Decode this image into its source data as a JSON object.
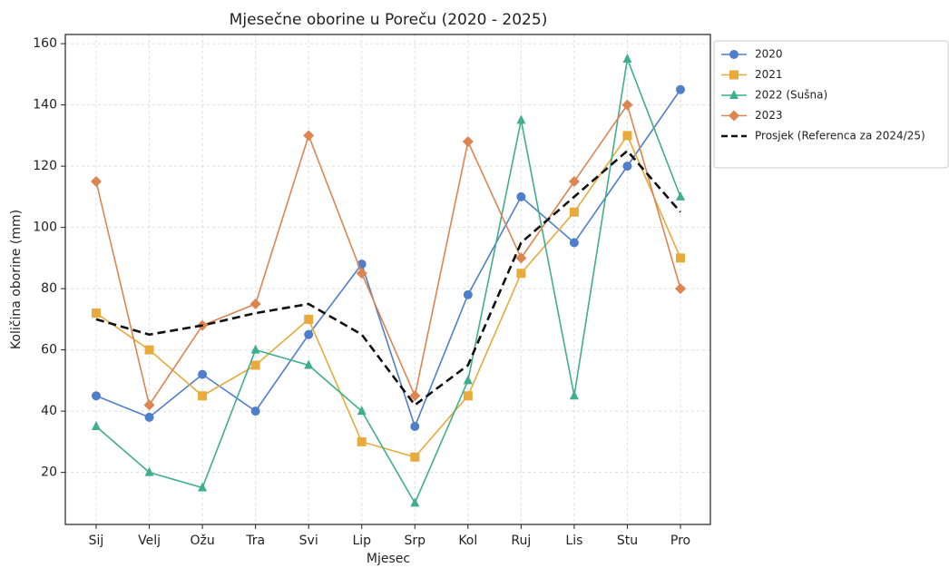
{
  "chart_data": {
    "type": "line",
    "title": "Mjesečne oborine u Poreču (2020 - 2025)",
    "x_label": "Mjesec",
    "y_label": "Količina oborine (mm)",
    "categories": [
      "Sij",
      "Velj",
      "Ožu",
      "Tra",
      "Svi",
      "Lip",
      "Srp",
      "Kol",
      "Ruj",
      "Lis",
      "Stu",
      "Pro"
    ],
    "ylim": [
      3,
      163
    ],
    "yticks": [
      20,
      40,
      60,
      80,
      100,
      120,
      140,
      160
    ],
    "grid": true,
    "legend": "outside-upper-right",
    "series": [
      {
        "name": "2020",
        "color": "#4f7fcb",
        "marker": "circle",
        "dash": false,
        "values": [
          45,
          38,
          52,
          40,
          65,
          88,
          35,
          78,
          110,
          95,
          120,
          145
        ]
      },
      {
        "name": "2021",
        "color": "#e8aa3a",
        "marker": "square",
        "dash": false,
        "values": [
          72,
          60,
          45,
          55,
          70,
          30,
          25,
          45,
          85,
          105,
          130,
          90
        ]
      },
      {
        "name": "2022 (Sušna)",
        "color": "#3fae8c",
        "marker": "triangle",
        "dash": false,
        "values": [
          35,
          20,
          15,
          60,
          55,
          40,
          10,
          50,
          135,
          45,
          155,
          110
        ]
      },
      {
        "name": "2023",
        "color": "#dd8450",
        "marker": "diamond",
        "dash": false,
        "values": [
          115,
          42,
          68,
          75,
          130,
          85,
          45,
          128,
          90,
          115,
          140,
          80
        ]
      },
      {
        "name": "Prosjek (Referenca za 2024/25)",
        "color": "#111111",
        "marker": "none",
        "dash": true,
        "values": [
          70,
          65,
          68,
          72,
          75,
          65,
          42,
          55,
          95,
          110,
          125,
          105
        ]
      }
    ]
  }
}
